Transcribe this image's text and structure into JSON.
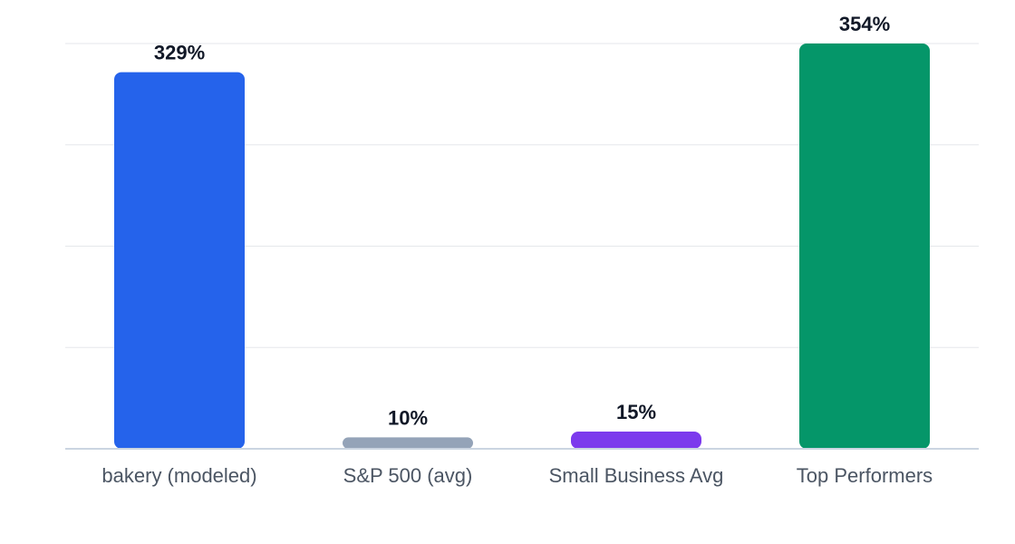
{
  "chart_data": {
    "type": "bar",
    "categories": [
      "bakery (modeled)",
      "S&P 500 (avg)",
      "Small Business Avg",
      "Top Performers"
    ],
    "values": [
      329,
      10,
      15,
      354
    ],
    "value_labels": [
      "329%",
      "10%",
      "15%",
      "354%"
    ],
    "colors": [
      "#2563eb",
      "#94a3b8",
      "#7c3aed",
      "#059669"
    ],
    "ylim": [
      0,
      354
    ],
    "grid": true,
    "title": "",
    "xlabel": "",
    "ylabel": ""
  },
  "style": {
    "grid_color": "#e5e7eb",
    "axis_color": "#cbd5e1"
  }
}
